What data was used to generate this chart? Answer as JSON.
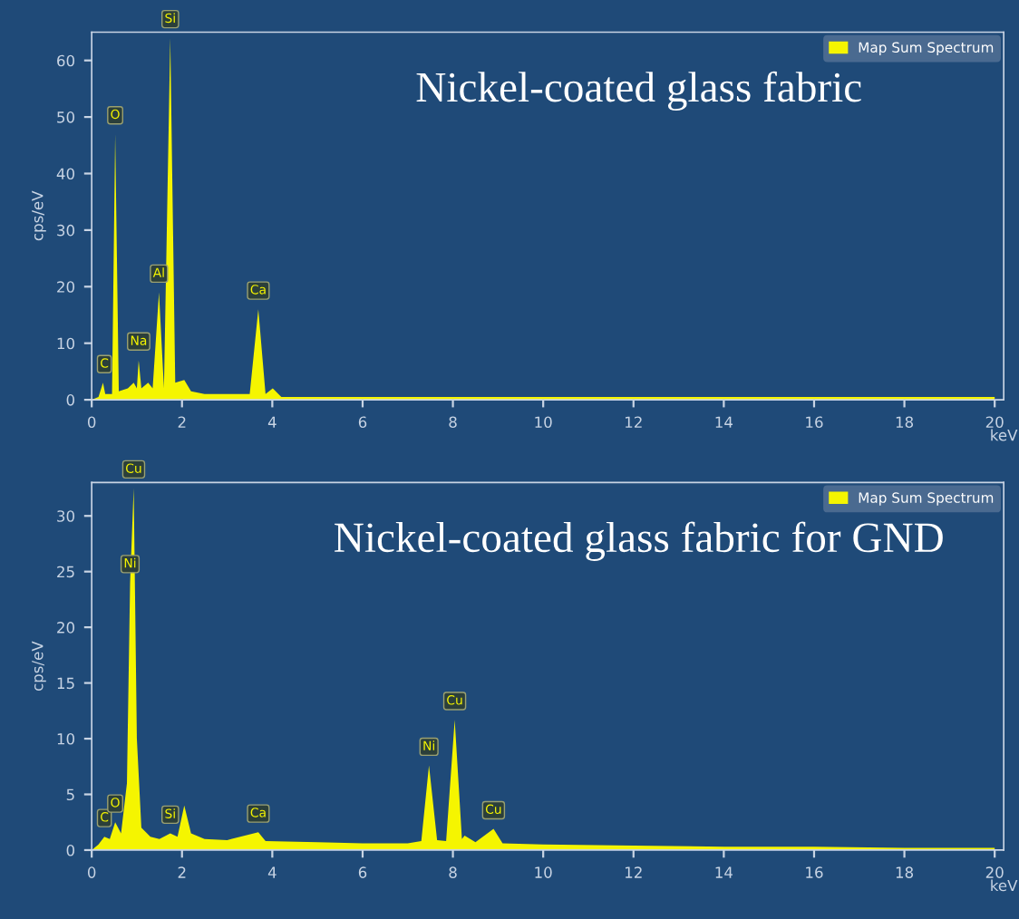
{
  "chart_data": [
    {
      "type": "area",
      "title": "Nickel-coated glass fabric",
      "ylabel": "cps/eV",
      "xlabel": "keV",
      "legend": "top right",
      "grid": false,
      "xlim": [
        0,
        20.2
      ],
      "xticks": [
        0,
        2,
        4,
        6,
        8,
        10,
        12,
        14,
        16,
        18,
        20
      ],
      "ylim": [
        0,
        65
      ],
      "yticks": [
        0,
        10,
        20,
        30,
        40,
        50,
        60
      ],
      "series": [
        {
          "name": "Map Sum Spectrum",
          "color": "#f5f500",
          "x": [
            0,
            0.15,
            0.25,
            0.3,
            0.45,
            0.52,
            0.6,
            0.8,
            0.93,
            1.0,
            1.04,
            1.1,
            1.25,
            1.35,
            1.49,
            1.6,
            1.74,
            1.85,
            2.05,
            2.2,
            2.5,
            3.0,
            3.31,
            3.5,
            3.69,
            3.85,
            4.01,
            4.2,
            5,
            6,
            7,
            8,
            10,
            12,
            14,
            16,
            18,
            20
          ],
          "values": [
            0,
            0.5,
            3,
            1,
            1,
            47,
            1.5,
            2,
            3,
            2,
            7,
            2,
            3,
            2,
            19,
            2,
            64,
            3,
            3.5,
            1.5,
            1,
            1,
            1,
            1,
            16,
            1,
            2,
            0.5,
            0.5,
            0.5,
            0.5,
            0.5,
            0.5,
            0.5,
            0.5,
            0.5,
            0.5,
            0.5
          ]
        }
      ],
      "annotations": [
        {
          "text": "C",
          "x": 0.28,
          "y": 3
        },
        {
          "text": "O",
          "x": 0.52,
          "y": 47
        },
        {
          "text": "Na",
          "x": 1.04,
          "y": 7
        },
        {
          "text": "Al",
          "x": 1.49,
          "y": 19
        },
        {
          "text": "Si",
          "x": 1.74,
          "y": 64
        },
        {
          "text": "Ca",
          "x": 3.69,
          "y": 16
        }
      ]
    },
    {
      "type": "area",
      "title": "Nickel-coated glass fabric for GND",
      "ylabel": "cps/eV",
      "xlabel": "keV",
      "legend": "top right",
      "grid": false,
      "xlim": [
        0,
        20.2
      ],
      "xticks": [
        0,
        2,
        4,
        6,
        8,
        10,
        12,
        14,
        16,
        18,
        20
      ],
      "ylim": [
        0,
        33
      ],
      "yticks": [
        0,
        5,
        10,
        15,
        20,
        25,
        30
      ],
      "series": [
        {
          "name": "Map Sum Spectrum",
          "color": "#f5f500",
          "x": [
            0,
            0.15,
            0.28,
            0.4,
            0.52,
            0.65,
            0.78,
            0.85,
            0.93,
            1.0,
            1.1,
            1.3,
            1.5,
            1.74,
            1.9,
            2.05,
            2.2,
            2.5,
            3.0,
            3.69,
            3.85,
            5,
            6,
            7,
            7.3,
            7.47,
            7.65,
            7.85,
            8.04,
            8.2,
            8.26,
            8.5,
            8.9,
            9.1,
            10,
            12,
            14,
            16,
            18,
            20
          ],
          "values": [
            0,
            0.5,
            1.2,
            1,
            2.5,
            1.5,
            6,
            24,
            32.5,
            10,
            2,
            1.2,
            1,
            1.5,
            1.2,
            4,
            1.5,
            1,
            0.9,
            1.6,
            0.8,
            0.7,
            0.6,
            0.6,
            0.8,
            7.6,
            0.9,
            0.8,
            11.7,
            1,
            1.3,
            0.7,
            1.9,
            0.6,
            0.5,
            0.4,
            0.3,
            0.3,
            0.2,
            0.2
          ]
        }
      ],
      "annotations": [
        {
          "text": "C",
          "x": 0.28,
          "y": 1.2
        },
        {
          "text": "O",
          "x": 0.52,
          "y": 2.5
        },
        {
          "text": "Ni",
          "x": 0.85,
          "y": 24
        },
        {
          "text": "Cu",
          "x": 0.93,
          "y": 32.5
        },
        {
          "text": "Si",
          "x": 1.74,
          "y": 1.5
        },
        {
          "text": "Ca",
          "x": 3.69,
          "y": 1.6
        },
        {
          "text": "Ni",
          "x": 7.47,
          "y": 7.6
        },
        {
          "text": "Cu",
          "x": 8.04,
          "y": 11.7
        },
        {
          "text": "Cu",
          "x": 8.9,
          "y": 1.9
        }
      ]
    }
  ]
}
